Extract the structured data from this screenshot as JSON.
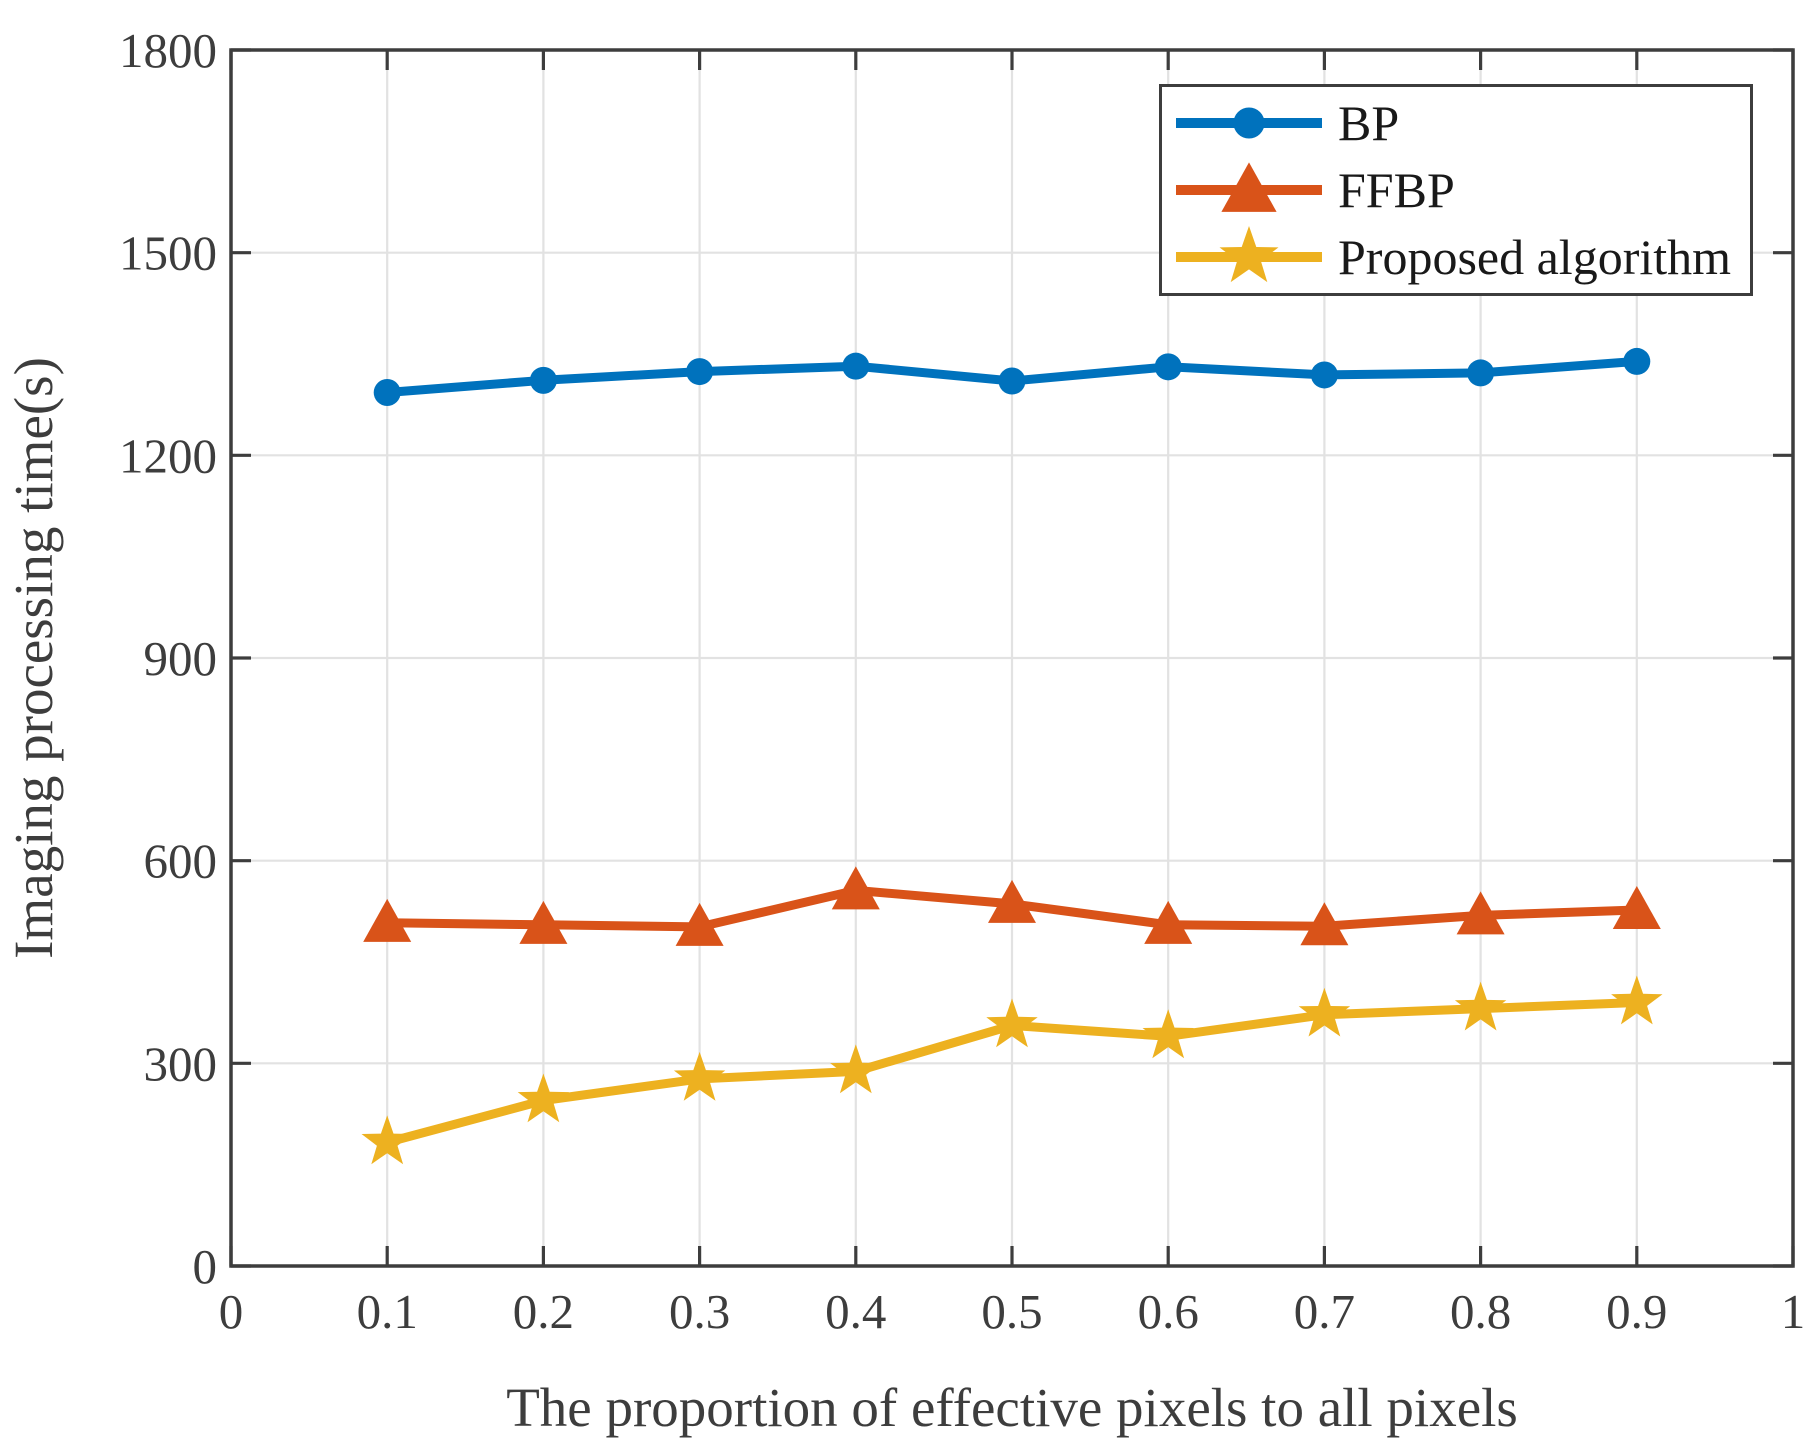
{
  "chart_data": {
    "type": "line",
    "title": "",
    "xlabel": "The proportion of effective pixels to all pixels",
    "ylabel": "Imaging processing time(s)",
    "xlim": [
      0,
      1
    ],
    "ylim": [
      0,
      1800
    ],
    "x_ticks": [
      0,
      0.1,
      0.2,
      0.3,
      0.4,
      0.5,
      0.6,
      0.7,
      0.8,
      0.9,
      1
    ],
    "x_tick_labels": [
      "0",
      "0.1",
      "0.2",
      "0.3",
      "0.4",
      "0.5",
      "0.6",
      "0.7",
      "0.8",
      "0.9",
      "1"
    ],
    "y_ticks": [
      0,
      300,
      600,
      900,
      1200,
      1500,
      1800
    ],
    "y_tick_labels": [
      "0",
      "300",
      "600",
      "900",
      "1200",
      "1500",
      "1800"
    ],
    "grid": true,
    "legend_position": "top-right",
    "x": [
      0.1,
      0.2,
      0.3,
      0.4,
      0.5,
      0.6,
      0.7,
      0.8,
      0.9
    ],
    "series": [
      {
        "name": "BP",
        "color": "#0072BD",
        "marker": "circle",
        "values": [
          1293,
          1311,
          1324,
          1332,
          1310,
          1331,
          1319,
          1322,
          1339
        ]
      },
      {
        "name": "FFBP",
        "color": "#D95319",
        "marker": "triangle",
        "values": [
          508,
          505,
          502,
          556,
          536,
          505,
          503,
          519,
          527
        ]
      },
      {
        "name": "Proposed algorithm",
        "color": "#EDB120",
        "marker": "star",
        "values": [
          183,
          245,
          277,
          288,
          356,
          340,
          372,
          381,
          390
        ]
      }
    ],
    "axis_color": "#3d3d3d",
    "grid_color": "#e2e2e2",
    "text_color": "#3d3d3d",
    "legend_text_color": "#191919",
    "background": "#ffffff"
  }
}
